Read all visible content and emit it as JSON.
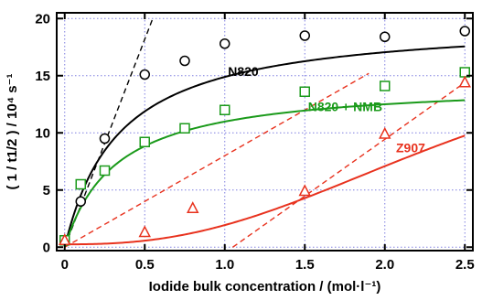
{
  "chart_data": {
    "type": "scatter",
    "xlabel": "Iodide bulk concentration / (mol·l⁻¹)",
    "ylabel": "( 1 / t1/2 ) / 10⁴ s⁻¹",
    "xlim": [
      -0.05,
      2.55
    ],
    "ylim": [
      -0.3,
      20.5
    ],
    "xticks": [
      0,
      0.5,
      1.0,
      1.5,
      2.0,
      2.5
    ],
    "xtick_labels": [
      "0",
      "0.5",
      "1.0",
      "1.5",
      "2.0",
      "2.5"
    ],
    "yticks": [
      0,
      5,
      10,
      15,
      20
    ],
    "ytick_labels": [
      "0",
      "5",
      "10",
      "15",
      "20"
    ],
    "grid": true,
    "series": [
      {
        "name": "N820",
        "color": "#000000",
        "marker": "circle",
        "x": [
          0,
          0.1,
          0.25,
          0.5,
          0.75,
          1.0,
          1.5,
          2.0,
          2.5
        ],
        "y": [
          0.6,
          4.0,
          9.5,
          15.1,
          16.3,
          17.8,
          18.5,
          18.4,
          18.9
        ],
        "fit": {
          "kind": "saturation",
          "params": [
            19.95,
            0.34
          ]
        }
      },
      {
        "name": "N820 + NMB",
        "color": "#1a9a1a",
        "marker": "square",
        "x": [
          0,
          0.1,
          0.25,
          0.5,
          0.75,
          1.0,
          1.5,
          2.0,
          2.5
        ],
        "y": [
          0.6,
          5.5,
          6.7,
          9.2,
          10.4,
          12.0,
          13.6,
          14.1,
          15.3
        ],
        "fit": {
          "kind": "saturation",
          "params": [
            14.5,
            0.32
          ]
        }
      },
      {
        "name": "Z907",
        "color": "#e8321e",
        "marker": "triangle",
        "x": [
          0,
          0.5,
          0.8,
          1.5,
          2.0,
          2.5
        ],
        "y": [
          0.6,
          1.3,
          3.4,
          4.9,
          9.9,
          14.4
        ],
        "fit": {
          "kind": "sigmoid",
          "params": [
            20,
            2.5,
            2.6,
            0.25
          ]
        }
      }
    ],
    "guide_lines": [
      {
        "color": "#000000",
        "x": [
          0,
          0.55
        ],
        "y": [
          0,
          20
        ]
      },
      {
        "color": "#e8321e",
        "x": [
          0,
          1.9
        ],
        "y": [
          0,
          15.2
        ]
      },
      {
        "color": "#e8321e",
        "x": [
          1.05,
          2.5
        ],
        "y": [
          0,
          14.4
        ]
      }
    ],
    "annotations": [
      {
        "text": "N820",
        "color": "#000000",
        "x": 1.02,
        "y": 15.0
      },
      {
        "text": "N820 + NMB",
        "color": "#1a9a1a",
        "x": 1.52,
        "y": 11.9
      },
      {
        "text": "Z907",
        "color": "#e8321e",
        "x": 2.07,
        "y": 8.3
      }
    ]
  }
}
